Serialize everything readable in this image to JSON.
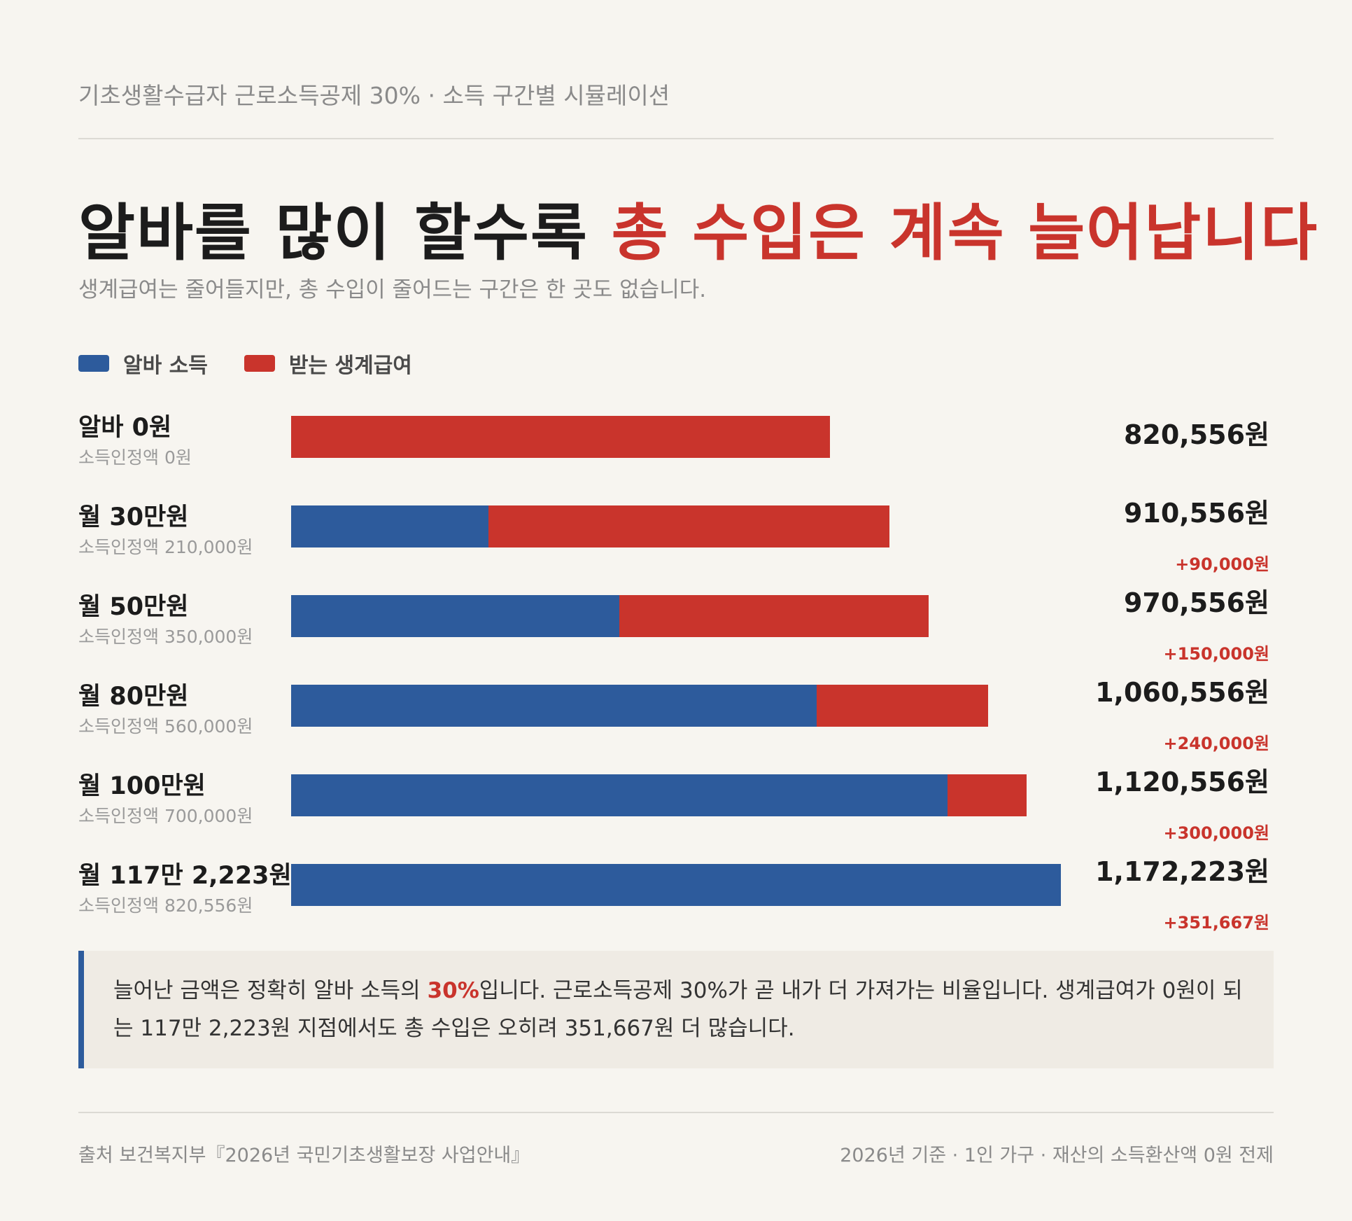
{
  "header": {
    "topline": "기초생활수급자 근로소득공제 30% · 소득 구간별 시뮬레이션",
    "title_part1": "알바를 많이 할수록 ",
    "title_part2": "총 수입은 계속 늘어납니다",
    "subtitle": "생계급여는 줄어들지만, 총 수입이 줄어드는 구간은 한 곳도 없습니다."
  },
  "colors": {
    "work_income": "#2d5b9c",
    "benefit": "#c9342c"
  },
  "chart_data": {
    "type": "bar",
    "orientation": "horizontal",
    "stacked": true,
    "legend_position": "top-left",
    "grid": false,
    "xlim": [
      0,
      1172223
    ],
    "categories": [
      "알바 0원",
      "월 30만원",
      "월 50만원",
      "월 80만원",
      "월 100만원",
      "월 117만 2,223원"
    ],
    "sublabels": [
      "소득인정액 0원",
      "소득인정액 210,000원",
      "소득인정액 350,000원",
      "소득인정액 560,000원",
      "소득인정액 700,000원",
      "소득인정액 820,556원"
    ],
    "series": [
      {
        "name": "알바 소득",
        "values": [
          0,
          300000,
          500000,
          800000,
          1000000,
          1172223
        ]
      },
      {
        "name": "받는 생계급여",
        "values": [
          820556,
          610556,
          470556,
          260556,
          120556,
          0
        ]
      }
    ],
    "totals": [
      "820,556원",
      "910,556원",
      "970,556원",
      "1,060,556원",
      "1,120,556원",
      "1,172,223원"
    ],
    "deltas": [
      "",
      "+90,000원",
      "+150,000원",
      "+240,000원",
      "+300,000원",
      "+351,667원"
    ]
  },
  "note": {
    "text_before": "늘어난 금액은 정확히 알바 소득의 ",
    "highlight": "30%",
    "text_after": "입니다. 근로소득공제 30%가 곧 내가 더 가져가는 비율입니다. 생계급여가 0원이 되는 117만 2,223원 지점에서도 총 수입은 오히려 351,667원 더 많습니다."
  },
  "footer": {
    "source": "출처 보건복지부『2026년 국민기초생활보장 사업안내』",
    "basis": "2026년 기준 · 1인 가구 · 재산의 소득환산액 0원 전제"
  }
}
